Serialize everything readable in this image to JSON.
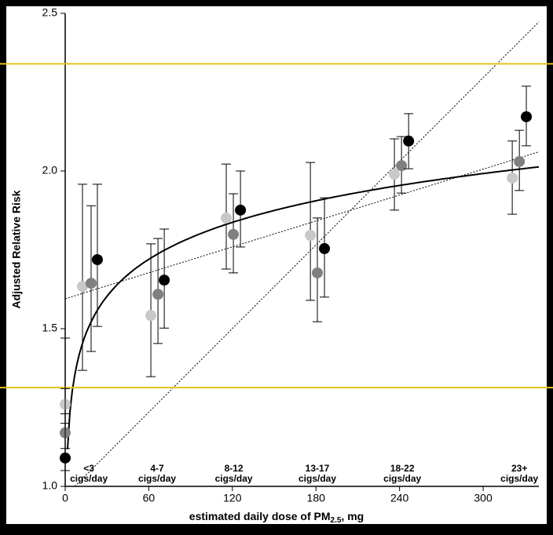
{
  "chart_data": {
    "type": "scatter",
    "y_label": "Adjusted Relative Risk",
    "x_label": {
      "text": "estimated daily dose of PM",
      "sub": "2.5",
      "suffix": ", mg"
    },
    "xlim": [
      0,
      340
    ],
    "ylim": [
      1.0,
      2.5
    ],
    "xticks": [
      0,
      60,
      120,
      180,
      240,
      300
    ],
    "yticks": [
      {
        "value": 1.0,
        "label": "1.0"
      },
      {
        "value": 1.5,
        "label": "1.5"
      },
      {
        "value": 2.0,
        "label": "2.0"
      },
      {
        "value": 2.5,
        "label": "2.5"
      }
    ],
    "groups": [
      {
        "label": [
          "<3",
          "cigs/day"
        ],
        "x": 17
      },
      {
        "label": [
          "4-7",
          "cigs/day"
        ],
        "x": 66
      },
      {
        "label": [
          "8-12",
          "cigs/day"
        ],
        "x": 121
      },
      {
        "label": [
          "13-17",
          "cigs/day"
        ],
        "x": 181
      },
      {
        "label": [
          "18-22",
          "cigs/day"
        ],
        "x": 242
      },
      {
        "label": [
          "23+",
          "cigs/day"
        ],
        "x": 326
      }
    ],
    "series": [
      {
        "color": "#c8c8c8",
        "x": [
          0,
          12.4,
          61.5,
          115.6,
          176,
          236.3,
          320.9
        ],
        "values": [
          1.26,
          1.634,
          1.542,
          1.851,
          1.796,
          1.99,
          1.978
        ],
        "upper": [
          1.31,
          1.958,
          1.769,
          2.022,
          2.027,
          2.102,
          2.095
        ],
        "lower": [
          1.2,
          1.368,
          1.348,
          1.689,
          1.59,
          1.876,
          1.863
        ]
      },
      {
        "color": "#808080",
        "x": [
          0,
          18.6,
          66.6,
          120.7,
          181,
          241.4,
          326
        ],
        "values": [
          1.17,
          1.644,
          1.609,
          1.799,
          1.677,
          2.017,
          2.03
        ],
        "upper": [
          1.23,
          1.89,
          1.786,
          1.928,
          1.851,
          2.109,
          2.129
        ],
        "lower": [
          1.12,
          1.428,
          1.453,
          1.677,
          1.522,
          1.93,
          1.938
        ]
      },
      {
        "color": "#000000",
        "x": [
          0,
          23.1,
          71.1,
          125.8,
          186.1,
          246.5,
          331
        ],
        "values": [
          1.09,
          1.719,
          1.654,
          1.876,
          1.754,
          2.095,
          2.172
        ],
        "upper": [
          1.47,
          1.958,
          1.816,
          2.0,
          1.915,
          2.182,
          2.269
        ],
        "lower": [
          1.05,
          1.507,
          1.502,
          1.759,
          1.6,
          2.007,
          2.08
        ]
      }
    ],
    "fits": [
      {
        "kind": "log",
        "a": 1.028,
        "b": 0.169,
        "dash": false
      },
      {
        "kind": "linear",
        "a": 1.595,
        "b": 0.00137,
        "dash": true
      },
      {
        "kind": "linear",
        "a": 0.97,
        "b": 0.00442,
        "dash": true
      }
    ],
    "hlines": [
      {
        "value": 2.34,
        "color": "#e0c21c"
      },
      {
        "value": 1.313,
        "color": "#e0c21c"
      }
    ]
  }
}
